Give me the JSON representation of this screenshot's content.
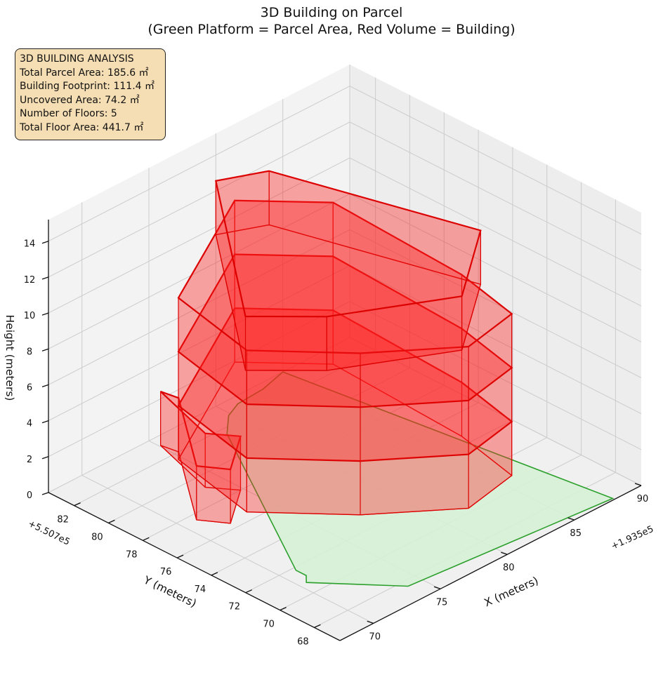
{
  "title_line1": "3D Building on Parcel",
  "title_line2": "(Green Platform = Parcel Area, Red Volume = Building)",
  "info": {
    "heading": "3D BUILDING ANALYSIS",
    "total_parcel_area": "Total Parcel Area: 185.6 ㎡",
    "building_footprint": "Building Footprint: 111.4 ㎡",
    "uncovered_area": "Uncovered Area: 74.2 ㎡",
    "number_of_floors": "Number of Floors: 5",
    "total_floor_area": "Total Floor Area: 441.7 ㎡"
  },
  "chart_data": {
    "type": "3d-polygon",
    "xlabel": "X (meters)",
    "ylabel": "Y (meters)",
    "zlabel": "Height (meters)",
    "x_offset": "+1.935e5",
    "y_offset": "+5.507e5",
    "x_ticks": [
      70,
      75,
      80,
      85,
      90
    ],
    "y_ticks": [
      68,
      70,
      72,
      74,
      76,
      78,
      80,
      82
    ],
    "z_ticks": [
      0,
      2,
      4,
      6,
      8,
      10,
      12,
      14
    ],
    "z_range": [
      0,
      15
    ],
    "grid": true,
    "colors": {
      "parcel_fill": "#d6f0d6",
      "parcel_edge": "#2ca02c",
      "building_fill": "#ff2222",
      "building_edge": "#dd0000",
      "info_box": "#f5deb3",
      "pane": "#f2f2f2",
      "grid": "#cccccc"
    },
    "parcel_polygon": [
      [
        85.0,
        83.5
      ],
      [
        83.0,
        83.1
      ],
      [
        81.0,
        83.0
      ],
      [
        79.8,
        82.6
      ],
      [
        78.4,
        81.6
      ],
      [
        71.0,
        71.8
      ],
      [
        71.0,
        71.2
      ],
      [
        70.5,
        70.8
      ],
      [
        74.0,
        67.6
      ],
      [
        88.0,
        66.6
      ]
    ],
    "floors": [
      {
        "z0": 0.0,
        "z1": 3.0,
        "polygon": [
          [
            73.7,
            79.2
          ],
          [
            74.8,
            78.0
          ],
          [
            72.0,
            76.4
          ],
          [
            71.0,
            77.6
          ],
          [
            75.3,
            82.0
          ],
          [
            75.1,
            82.9
          ]
        ]
      },
      {
        "z0": 3.0,
        "z1": 6.0,
        "polygon": [
          [
            82.0,
            67.8
          ],
          [
            78.0,
            67.2
          ],
          [
            73.5,
            70.0
          ],
          [
            69.5,
            73.5
          ],
          [
            70.8,
            78.5
          ],
          [
            80.0,
            82.4
          ],
          [
            83.5,
            79.4
          ],
          [
            83.0,
            71.5
          ]
        ]
      },
      {
        "z0": 6.0,
        "z1": 9.0,
        "polygon": [
          [
            82.0,
            67.8
          ],
          [
            78.0,
            67.2
          ],
          [
            73.5,
            70.0
          ],
          [
            69.5,
            73.5
          ],
          [
            70.8,
            78.5
          ],
          [
            80.0,
            82.4
          ],
          [
            83.5,
            79.4
          ],
          [
            83.0,
            71.5
          ]
        ]
      },
      {
        "z0": 9.0,
        "z1": 12.0,
        "polygon": [
          [
            82.0,
            67.8
          ],
          [
            78.0,
            67.2
          ],
          [
            73.5,
            70.0
          ],
          [
            69.5,
            73.5
          ],
          [
            70.8,
            78.5
          ],
          [
            80.0,
            82.4
          ],
          [
            83.5,
            79.4
          ],
          [
            83.0,
            71.5
          ]
        ]
      },
      {
        "z0": 12.0,
        "z1": 15.0,
        "polygon": [
          [
            83.0,
            70.4
          ],
          [
            77.5,
            67.2
          ],
          [
            71.0,
            70.0
          ],
          [
            68.0,
            72.4
          ],
          [
            76.8,
            81.0
          ],
          [
            79.5,
            80.0
          ]
        ]
      }
    ]
  }
}
